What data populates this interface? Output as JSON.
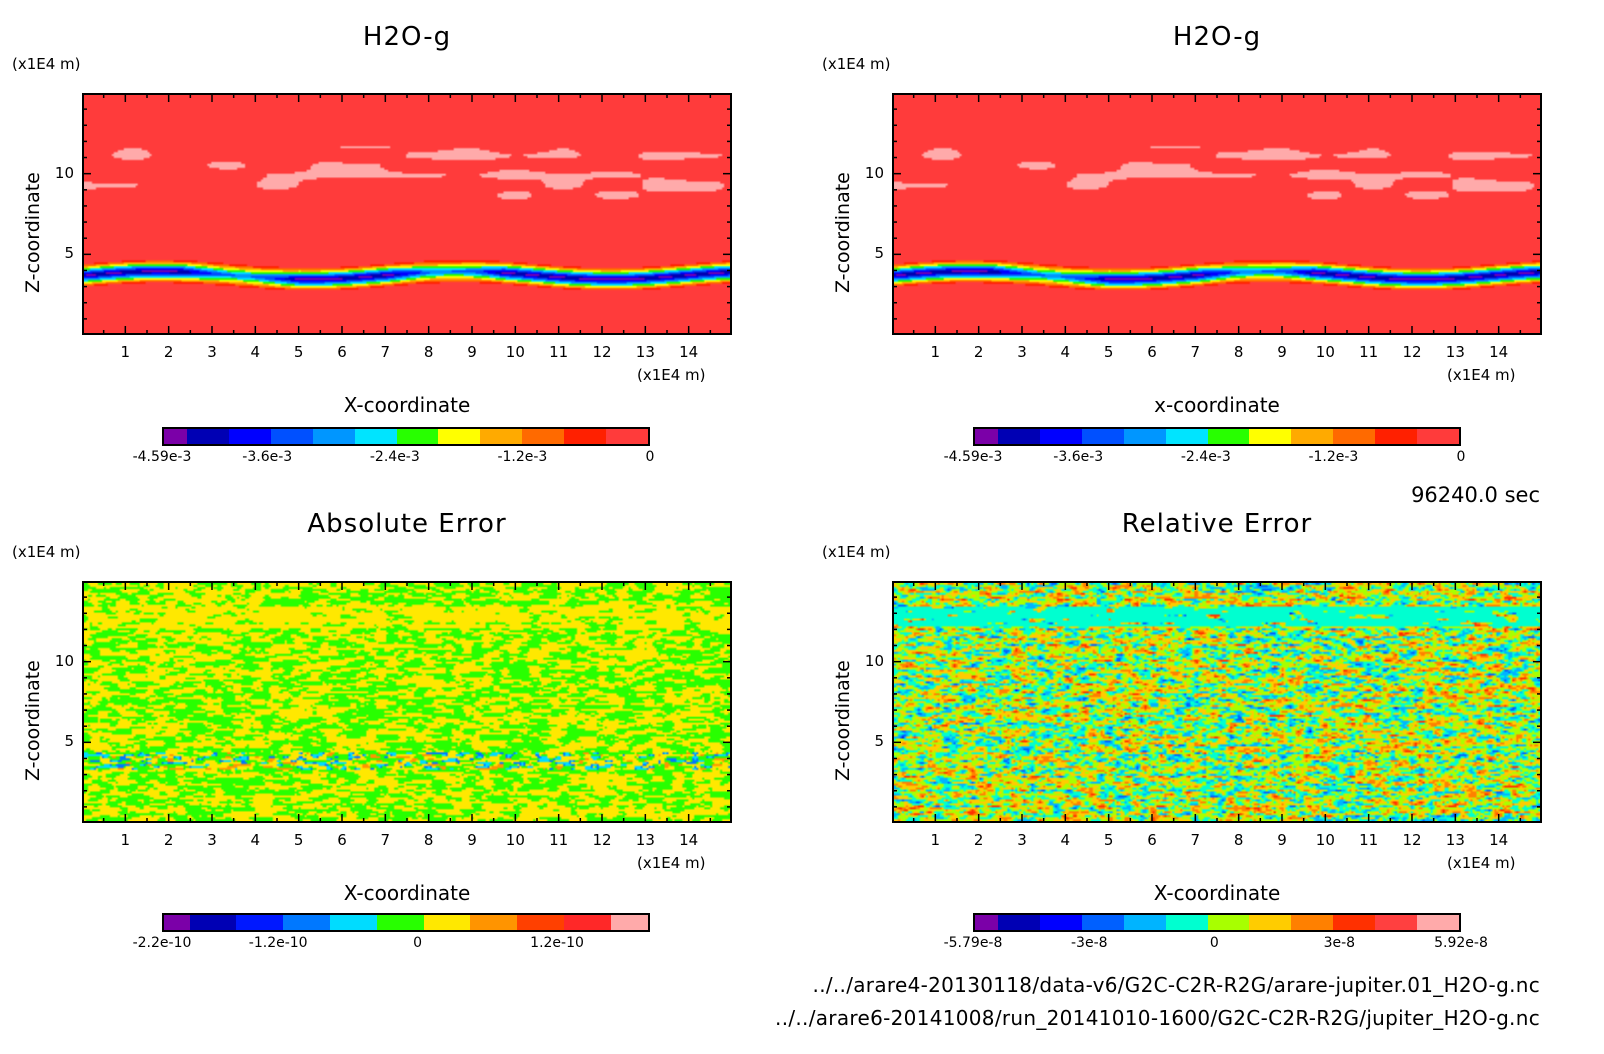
{
  "chart_data": [
    {
      "id": "h2o-a",
      "type": "heatmap",
      "title": "H2O-g",
      "xlabel": "X-coordinate",
      "ylabel": "Z-coordinate",
      "x_unit": "(x1E4 m)",
      "y_unit": "(x1E4 m)",
      "xlim": [
        0,
        15
      ],
      "ylim": [
        0,
        15
      ],
      "x_ticks": [
        "1",
        "2",
        "3",
        "4",
        "5",
        "6",
        "7",
        "8",
        "9",
        "10",
        "11",
        "12",
        "13",
        "14"
      ],
      "y_ticks": [
        "5",
        "10"
      ],
      "field": "moist-layer",
      "colorbar": {
        "colors": [
          "#7b00a8",
          "#0000b4",
          "#0000ff",
          "#0050ff",
          "#0096ff",
          "#00e4ff",
          "#28ff00",
          "#ffff00",
          "#ffaa00",
          "#ff6a00",
          "#ff2000",
          "#ff3b3b"
        ],
        "tick_labels": [
          "-4.59e-3",
          "-3.6e-3",
          "-2.4e-3",
          "-1.2e-3",
          "0"
        ],
        "range": [
          -0.00459,
          0
        ]
      }
    },
    {
      "id": "h2o-b",
      "type": "heatmap",
      "title": "H2O-g",
      "xlabel": "x-coordinate",
      "ylabel": "Z-coordinate",
      "x_unit": "(x1E4 m)",
      "y_unit": "(x1E4 m)",
      "xlim": [
        0,
        15
      ],
      "ylim": [
        0,
        15
      ],
      "x_ticks": [
        "1",
        "2",
        "3",
        "4",
        "5",
        "6",
        "7",
        "8",
        "9",
        "10",
        "11",
        "12",
        "13",
        "14"
      ],
      "y_ticks": [
        "5",
        "10"
      ],
      "field": "moist-layer",
      "colorbar": {
        "colors": [
          "#7b00a8",
          "#0000b4",
          "#0000ff",
          "#0050ff",
          "#0096ff",
          "#00e4ff",
          "#28ff00",
          "#ffff00",
          "#ffaa00",
          "#ff6a00",
          "#ff2000",
          "#ff3b3b"
        ],
        "tick_labels": [
          "-4.59e-3",
          "-3.6e-3",
          "-2.4e-3",
          "-1.2e-3",
          "0"
        ],
        "range": [
          -0.00459,
          0
        ]
      }
    },
    {
      "id": "abs-err",
      "type": "heatmap",
      "title": "Absolute Error",
      "xlabel": "X-coordinate",
      "ylabel": "Z-coordinate",
      "x_unit": "(x1E4 m)",
      "y_unit": "(x1E4 m)",
      "xlim": [
        0,
        15
      ],
      "ylim": [
        0,
        15
      ],
      "x_ticks": [
        "1",
        "2",
        "3",
        "4",
        "5",
        "6",
        "7",
        "8",
        "9",
        "10",
        "11",
        "12",
        "13",
        "14"
      ],
      "y_ticks": [
        "5",
        "10"
      ],
      "field": "abs-noise",
      "colorbar": {
        "colors": [
          "#7b00a8",
          "#0000b4",
          "#0018ff",
          "#0078ff",
          "#00dcff",
          "#28ff00",
          "#ffe800",
          "#ff9400",
          "#ff4000",
          "#ff2828",
          "#ffaaaa"
        ],
        "tick_labels": [
          "-2.2e-10",
          "-1.2e-10",
          "0",
          "1.2e-10"
        ],
        "range": [
          -2.2e-10,
          2e-10
        ]
      }
    },
    {
      "id": "rel-err",
      "type": "heatmap",
      "title": "Relative Error",
      "xlabel": "X-coordinate",
      "ylabel": "Z-coordinate",
      "x_unit": "(x1E4 m)",
      "y_unit": "(x1E4 m)",
      "xlim": [
        0,
        15
      ],
      "ylim": [
        0,
        15
      ],
      "x_ticks": [
        "1",
        "2",
        "3",
        "4",
        "5",
        "6",
        "7",
        "8",
        "9",
        "10",
        "11",
        "12",
        "13",
        "14"
      ],
      "y_ticks": [
        "5",
        "10"
      ],
      "field": "rel-noise",
      "colorbar": {
        "colors": [
          "#7b00a8",
          "#0000b4",
          "#0000ff",
          "#0060ff",
          "#00b4ff",
          "#00ffd0",
          "#a8ff00",
          "#ffcc00",
          "#ff8000",
          "#ff3000",
          "#ff4040",
          "#ffaaaa"
        ],
        "tick_labels": [
          "-5.79e-8",
          "-3e-8",
          "0",
          "3e-8",
          "5.92e-8"
        ],
        "range": [
          -5.79e-08,
          5.92e-08
        ]
      }
    }
  ],
  "time_label": "96240.0 sec",
  "footer": {
    "file_a": "../../arare4-20130118/data-v6/G2C-C2R-R2G/arare-jupiter.01_H2O-g.nc",
    "file_b": "../../arare6-20141008/run_20141010-1600/G2C-C2R-R2G/jupiter_H2O-g.nc"
  }
}
